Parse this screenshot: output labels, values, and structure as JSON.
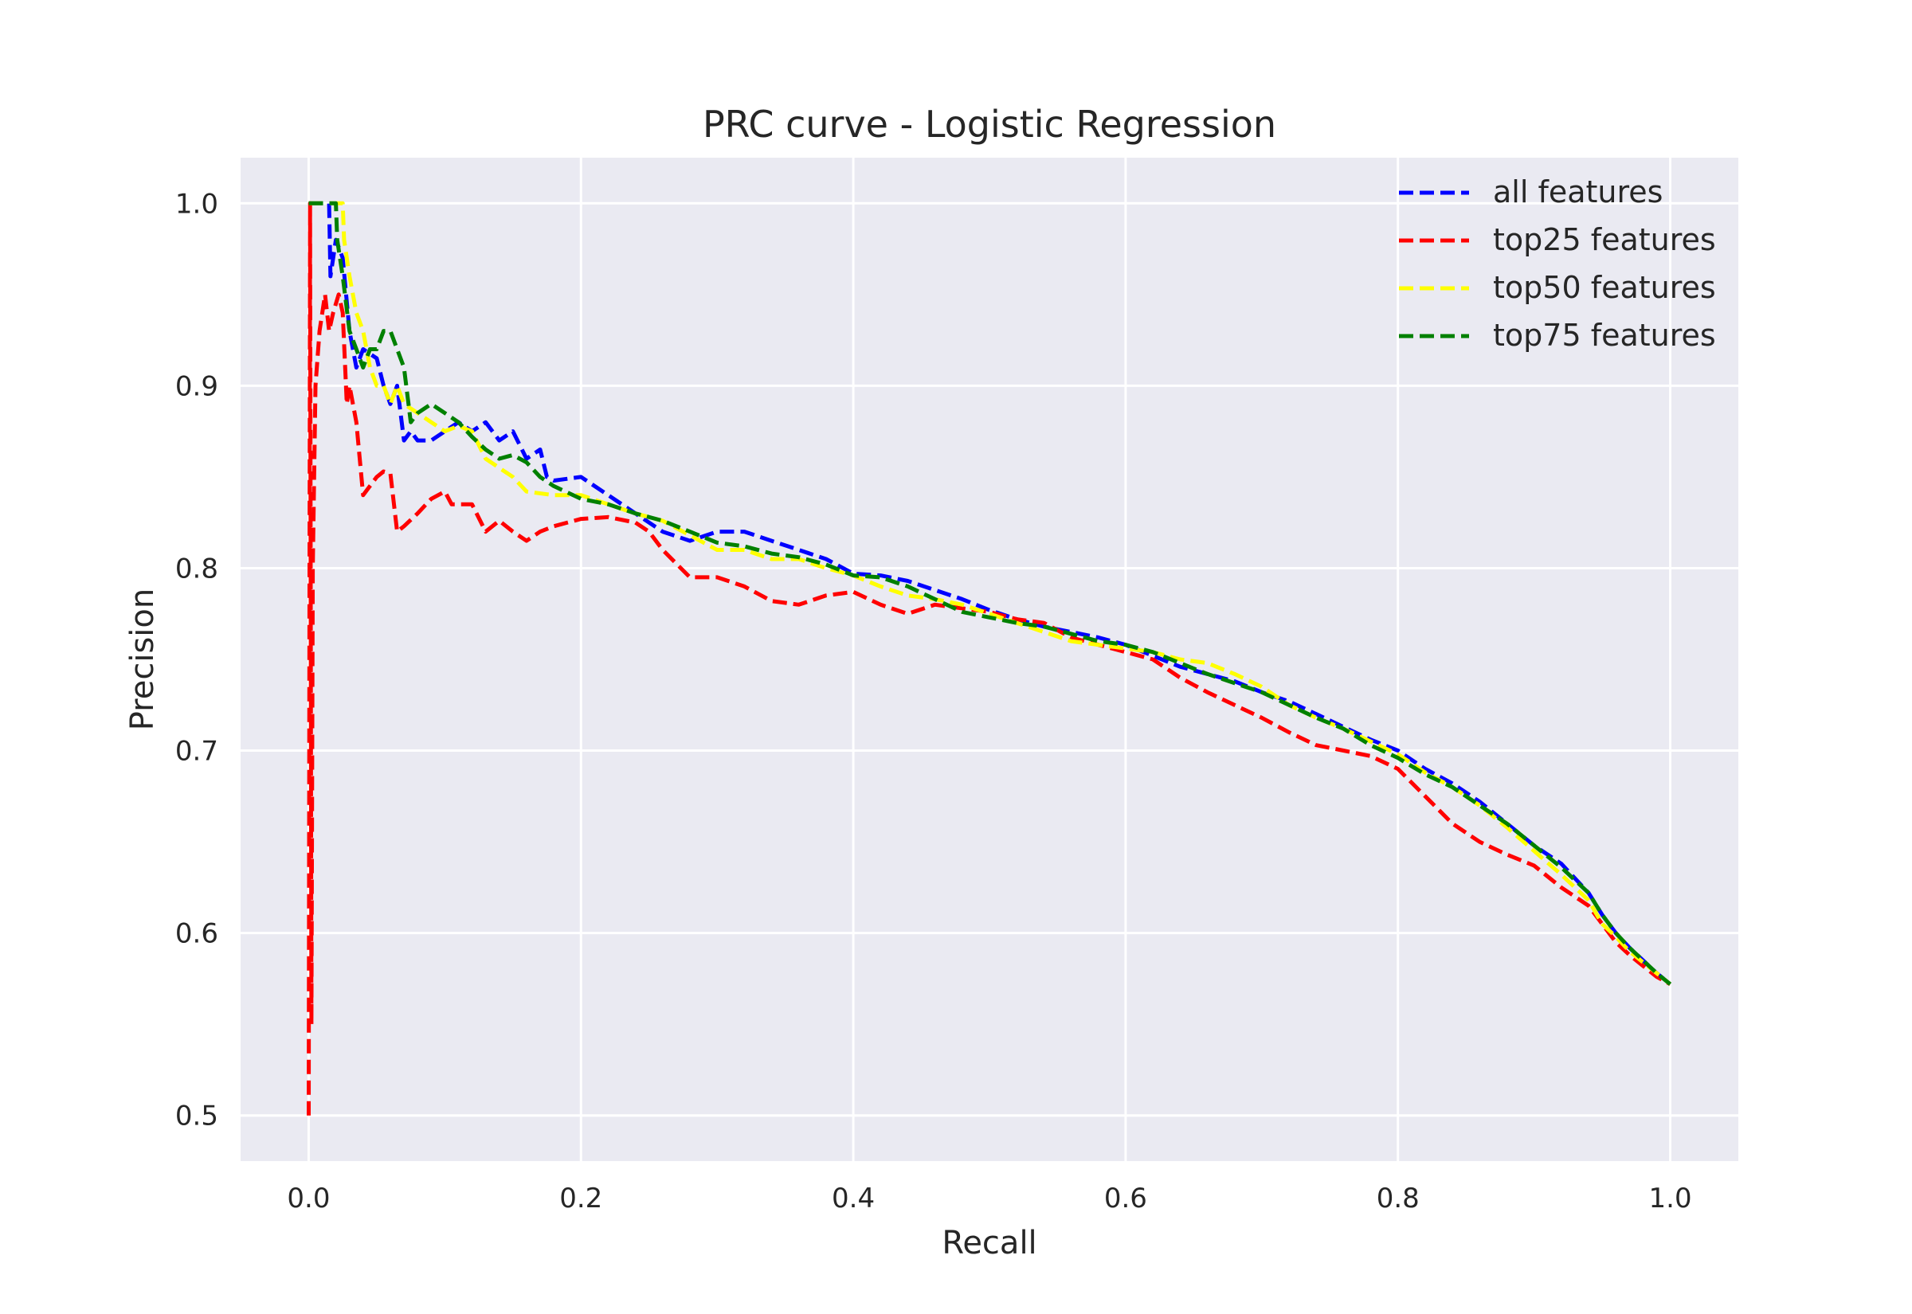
{
  "chart_data": {
    "type": "line",
    "title": "PRC curve - Logistic Regression",
    "xlabel": "Recall",
    "ylabel": "Precision",
    "xlim": [
      -0.05,
      1.05
    ],
    "ylim": [
      0.475,
      1.025
    ],
    "xticks": [
      0.0,
      0.2,
      0.4,
      0.6,
      0.8,
      1.0
    ],
    "xtick_labels": [
      "0.0",
      "0.2",
      "0.4",
      "0.6",
      "0.8",
      "1.0"
    ],
    "yticks": [
      0.5,
      0.6,
      0.7,
      0.8,
      0.9,
      1.0
    ],
    "ytick_labels": [
      "0.5",
      "0.6",
      "0.7",
      "0.8",
      "0.9",
      "1.0"
    ],
    "grid": true,
    "background": "#eaeaf2",
    "legend_position": "top-right",
    "series": [
      {
        "name": "all features",
        "color": "#0000ff",
        "x": [
          0.0,
          0.015,
          0.016,
          0.02,
          0.025,
          0.03,
          0.035,
          0.04,
          0.05,
          0.055,
          0.06,
          0.065,
          0.07,
          0.075,
          0.08,
          0.09,
          0.1,
          0.11,
          0.12,
          0.13,
          0.14,
          0.15,
          0.16,
          0.17,
          0.175,
          0.18,
          0.2,
          0.22,
          0.24,
          0.26,
          0.28,
          0.3,
          0.32,
          0.34,
          0.36,
          0.38,
          0.4,
          0.42,
          0.44,
          0.46,
          0.48,
          0.5,
          0.52,
          0.54,
          0.56,
          0.58,
          0.6,
          0.62,
          0.64,
          0.66,
          0.68,
          0.7,
          0.72,
          0.74,
          0.76,
          0.78,
          0.8,
          0.82,
          0.84,
          0.86,
          0.88,
          0.9,
          0.92,
          0.94,
          0.95,
          0.96,
          0.97,
          0.98,
          0.99,
          1.0
        ],
        "y": [
          1.0,
          1.0,
          0.96,
          0.98,
          0.97,
          0.93,
          0.91,
          0.92,
          0.915,
          0.9,
          0.89,
          0.9,
          0.87,
          0.875,
          0.87,
          0.87,
          0.875,
          0.88,
          0.875,
          0.88,
          0.87,
          0.875,
          0.86,
          0.865,
          0.85,
          0.848,
          0.85,
          0.84,
          0.83,
          0.82,
          0.815,
          0.82,
          0.82,
          0.815,
          0.81,
          0.805,
          0.797,
          0.796,
          0.793,
          0.788,
          0.783,
          0.777,
          0.772,
          0.768,
          0.765,
          0.762,
          0.758,
          0.752,
          0.746,
          0.742,
          0.738,
          0.732,
          0.727,
          0.72,
          0.713,
          0.706,
          0.7,
          0.69,
          0.682,
          0.672,
          0.66,
          0.648,
          0.638,
          0.622,
          0.61,
          0.6,
          0.592,
          0.585,
          0.578,
          0.572
        ]
      },
      {
        "name": "top25 features",
        "color": "#ff0000",
        "x": [
          0.0,
          0.001,
          0.002,
          0.003,
          0.005,
          0.008,
          0.012,
          0.015,
          0.018,
          0.022,
          0.025,
          0.028,
          0.03,
          0.035,
          0.04,
          0.05,
          0.055,
          0.06,
          0.065,
          0.07,
          0.08,
          0.09,
          0.1,
          0.105,
          0.12,
          0.13,
          0.14,
          0.15,
          0.16,
          0.17,
          0.18,
          0.2,
          0.22,
          0.24,
          0.25,
          0.26,
          0.28,
          0.3,
          0.32,
          0.34,
          0.36,
          0.38,
          0.4,
          0.42,
          0.44,
          0.46,
          0.48,
          0.5,
          0.52,
          0.54,
          0.56,
          0.58,
          0.6,
          0.62,
          0.64,
          0.66,
          0.68,
          0.7,
          0.72,
          0.74,
          0.76,
          0.78,
          0.8,
          0.82,
          0.84,
          0.86,
          0.88,
          0.9,
          0.92,
          0.94,
          0.95,
          0.96,
          0.97,
          0.98,
          0.99,
          1.0
        ],
        "y": [
          0.5,
          1.0,
          0.55,
          0.8,
          0.9,
          0.93,
          0.95,
          0.93,
          0.94,
          0.95,
          0.94,
          0.89,
          0.9,
          0.88,
          0.84,
          0.85,
          0.853,
          0.852,
          0.82,
          0.823,
          0.83,
          0.838,
          0.842,
          0.835,
          0.835,
          0.82,
          0.826,
          0.82,
          0.815,
          0.82,
          0.823,
          0.827,
          0.828,
          0.825,
          0.82,
          0.81,
          0.795,
          0.795,
          0.79,
          0.782,
          0.78,
          0.785,
          0.787,
          0.78,
          0.775,
          0.78,
          0.778,
          0.776,
          0.772,
          0.77,
          0.762,
          0.758,
          0.754,
          0.75,
          0.74,
          0.732,
          0.725,
          0.718,
          0.71,
          0.703,
          0.7,
          0.697,
          0.69,
          0.675,
          0.66,
          0.65,
          0.643,
          0.637,
          0.625,
          0.615,
          0.605,
          0.595,
          0.588,
          0.582,
          0.576,
          0.572
        ]
      },
      {
        "name": "top50 features",
        "color": "#ffff00",
        "x": [
          0.0,
          0.025,
          0.026,
          0.03,
          0.035,
          0.04,
          0.045,
          0.05,
          0.055,
          0.06,
          0.065,
          0.07,
          0.08,
          0.09,
          0.1,
          0.11,
          0.12,
          0.13,
          0.14,
          0.15,
          0.16,
          0.18,
          0.2,
          0.22,
          0.24,
          0.26,
          0.28,
          0.3,
          0.32,
          0.34,
          0.36,
          0.38,
          0.4,
          0.42,
          0.44,
          0.46,
          0.48,
          0.5,
          0.52,
          0.54,
          0.56,
          0.58,
          0.6,
          0.62,
          0.64,
          0.66,
          0.68,
          0.7,
          0.72,
          0.74,
          0.76,
          0.78,
          0.8,
          0.82,
          0.84,
          0.86,
          0.88,
          0.9,
          0.92,
          0.94,
          0.95,
          0.96,
          0.97,
          0.98,
          0.99,
          1.0
        ],
        "y": [
          1.0,
          1.0,
          0.98,
          0.96,
          0.94,
          0.93,
          0.91,
          0.9,
          0.9,
          0.89,
          0.9,
          0.89,
          0.885,
          0.88,
          0.875,
          0.878,
          0.875,
          0.86,
          0.855,
          0.85,
          0.842,
          0.84,
          0.84,
          0.835,
          0.83,
          0.826,
          0.818,
          0.81,
          0.81,
          0.805,
          0.805,
          0.8,
          0.796,
          0.79,
          0.785,
          0.783,
          0.78,
          0.775,
          0.77,
          0.765,
          0.76,
          0.758,
          0.756,
          0.754,
          0.75,
          0.748,
          0.742,
          0.735,
          0.725,
          0.718,
          0.712,
          0.705,
          0.698,
          0.688,
          0.68,
          0.67,
          0.658,
          0.645,
          0.632,
          0.618,
          0.605,
          0.598,
          0.59,
          0.584,
          0.578,
          0.572
        ]
      },
      {
        "name": "top75 features",
        "color": "#008000",
        "x": [
          0.0,
          0.02,
          0.021,
          0.025,
          0.03,
          0.035,
          0.04,
          0.045,
          0.05,
          0.055,
          0.06,
          0.065,
          0.07,
          0.075,
          0.08,
          0.09,
          0.1,
          0.11,
          0.12,
          0.13,
          0.14,
          0.15,
          0.16,
          0.17,
          0.18,
          0.2,
          0.22,
          0.24,
          0.26,
          0.28,
          0.3,
          0.32,
          0.34,
          0.36,
          0.38,
          0.4,
          0.42,
          0.44,
          0.46,
          0.48,
          0.5,
          0.52,
          0.54,
          0.56,
          0.58,
          0.6,
          0.62,
          0.64,
          0.66,
          0.68,
          0.7,
          0.72,
          0.74,
          0.76,
          0.78,
          0.8,
          0.82,
          0.84,
          0.86,
          0.88,
          0.9,
          0.92,
          0.94,
          0.95,
          0.96,
          0.97,
          0.98,
          0.99,
          1.0
        ],
        "y": [
          1.0,
          1.0,
          0.98,
          0.96,
          0.93,
          0.92,
          0.91,
          0.92,
          0.92,
          0.93,
          0.93,
          0.92,
          0.91,
          0.88,
          0.885,
          0.89,
          0.885,
          0.88,
          0.872,
          0.865,
          0.86,
          0.862,
          0.858,
          0.85,
          0.845,
          0.838,
          0.835,
          0.83,
          0.826,
          0.82,
          0.814,
          0.812,
          0.808,
          0.806,
          0.802,
          0.796,
          0.795,
          0.79,
          0.783,
          0.776,
          0.773,
          0.77,
          0.768,
          0.764,
          0.76,
          0.758,
          0.754,
          0.748,
          0.742,
          0.737,
          0.732,
          0.725,
          0.718,
          0.712,
          0.703,
          0.696,
          0.687,
          0.68,
          0.67,
          0.66,
          0.648,
          0.636,
          0.622,
          0.61,
          0.6,
          0.592,
          0.585,
          0.578,
          0.572
        ]
      }
    ]
  }
}
